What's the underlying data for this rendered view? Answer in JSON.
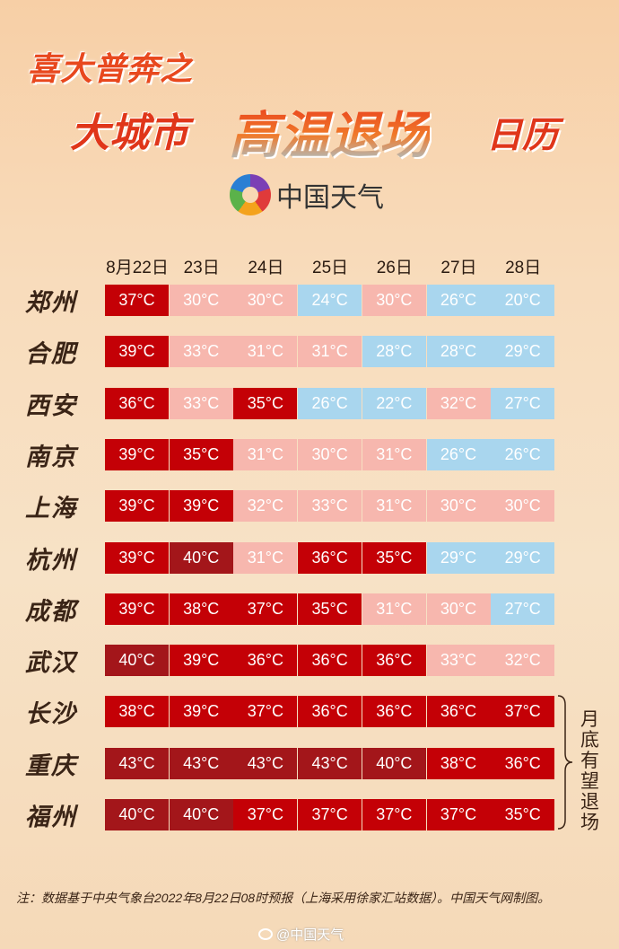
{
  "header": {
    "title_line1": "喜大普奔之",
    "title_part1": "大城市",
    "title_part2": "高温退场",
    "title_part3": "日历",
    "logo_text": "中国天气",
    "logo_icon": "china-weather-swirl-logo"
  },
  "dates": [
    "8月22日",
    "23日",
    "24日",
    "25日",
    "26日",
    "27日",
    "28日"
  ],
  "colors": {
    "extreme": "#a3161a",
    "hot": "#c40006",
    "warm": "#f7b7ae",
    "cool": "#a9d6ee"
  },
  "rows": [
    {
      "city": "郑州",
      "temps": [
        37,
        30,
        30,
        24,
        30,
        26,
        20
      ]
    },
    {
      "city": "合肥",
      "temps": [
        39,
        33,
        31,
        31,
        28,
        28,
        29
      ]
    },
    {
      "city": "西安",
      "temps": [
        36,
        33,
        35,
        26,
        22,
        32,
        27
      ]
    },
    {
      "city": "南京",
      "temps": [
        39,
        35,
        31,
        30,
        31,
        26,
        26
      ]
    },
    {
      "city": "上海",
      "temps": [
        39,
        39,
        32,
        33,
        31,
        30,
        30
      ]
    },
    {
      "city": "杭州",
      "temps": [
        39,
        40,
        31,
        36,
        35,
        29,
        29
      ]
    },
    {
      "city": "成都",
      "temps": [
        39,
        38,
        37,
        35,
        31,
        30,
        27
      ]
    },
    {
      "city": "武汉",
      "temps": [
        40,
        39,
        36,
        36,
        36,
        33,
        32
      ]
    },
    {
      "city": "长沙",
      "temps": [
        38,
        39,
        37,
        36,
        36,
        36,
        37
      ]
    },
    {
      "city": "重庆",
      "temps": [
        43,
        43,
        43,
        43,
        40,
        38,
        36
      ]
    },
    {
      "city": "福州",
      "temps": [
        40,
        40,
        37,
        37,
        37,
        37,
        35
      ]
    }
  ],
  "unit": "°C",
  "side_note": "月底有望退场",
  "footnote": "注：数据基于中央气象台2022年8月22日08时预报（上海采用徐家汇站数据）。中国天气网制图。",
  "watermark": "@中国天气"
}
